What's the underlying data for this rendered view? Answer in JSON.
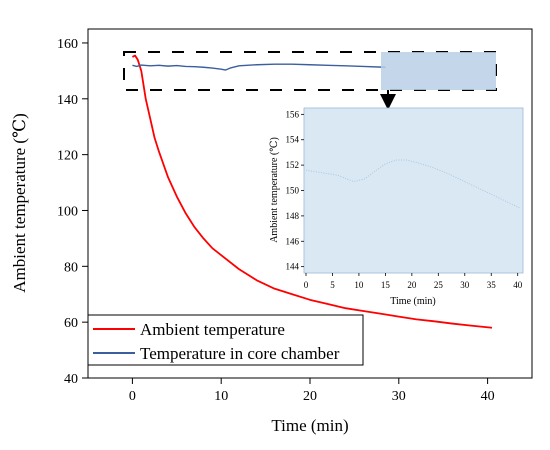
{
  "chart_data": [
    {
      "type": "line",
      "xlabel": "Time (min)",
      "ylabel": "Ambient temperature (℃)",
      "xlim": [
        -5,
        45
      ],
      "ylim": [
        40,
        165
      ],
      "xticks": [
        "0",
        "10",
        "20",
        "30",
        "40"
      ],
      "yticks": [
        "40",
        "60",
        "80",
        "100",
        "120",
        "140",
        "160"
      ],
      "legend": "bottom-left",
      "series": [
        {
          "name": "Ambient temperature",
          "color": "#ff0000",
          "x": [
            0,
            0.3,
            0.6,
            1,
            1.5,
            2,
            2.5,
            3,
            4,
            5,
            6,
            7,
            8,
            9,
            10,
            12,
            14,
            16,
            18,
            20,
            22,
            24,
            26,
            28,
            30,
            32,
            34,
            36,
            38,
            40.5
          ],
          "y": [
            155,
            155.5,
            154,
            150,
            140,
            133,
            126,
            121,
            112,
            105,
            99,
            94,
            90,
            86.5,
            84,
            79,
            75,
            72,
            70,
            68,
            66.5,
            65,
            64,
            63,
            62,
            61,
            60.3,
            59.5,
            58.8,
            58
          ]
        },
        {
          "name": "Temperature in core chamber",
          "color": "#3b5f9e",
          "x": [
            0,
            0.5,
            1,
            2,
            3,
            4,
            5,
            6,
            7,
            8,
            9,
            10,
            10.5,
            11,
            12,
            14,
            16,
            18,
            20,
            22,
            24,
            26,
            28.5
          ],
          "y": [
            152,
            151.6,
            152.1,
            151.8,
            152,
            151.7,
            151.9,
            151.6,
            151.5,
            151.3,
            151,
            150.6,
            150.3,
            151,
            151.8,
            152.2,
            152.4,
            152.4,
            152.2,
            152,
            151.8,
            151.6,
            151.3
          ]
        }
      ],
      "annotations": [
        "dashed zoom box around core-chamber curve",
        "arrow from zoom box to inset"
      ]
    },
    {
      "type": "line",
      "xlabel": "Time (min)",
      "ylabel": "Ambient temperature (℃)",
      "xlim": [
        0,
        41
      ],
      "ylim": [
        143.5,
        156.5
      ],
      "xticks": [
        "0",
        "5",
        "10",
        "15",
        "20",
        "25",
        "30",
        "35",
        "40"
      ],
      "yticks": [
        "144",
        "146",
        "148",
        "150",
        "152",
        "154",
        "156"
      ],
      "series": [
        {
          "color": "#a9c6e0",
          "x": [
            0,
            3,
            6,
            9,
            11,
            13,
            15,
            17,
            19,
            21,
            24,
            27,
            30,
            33,
            36,
            39,
            40.5
          ],
          "y": [
            151.6,
            151.4,
            151.2,
            150.7,
            150.9,
            151.5,
            152.1,
            152.4,
            152.4,
            152.2,
            151.8,
            151.3,
            150.7,
            150.1,
            149.5,
            148.9,
            148.6
          ]
        }
      ]
    }
  ]
}
